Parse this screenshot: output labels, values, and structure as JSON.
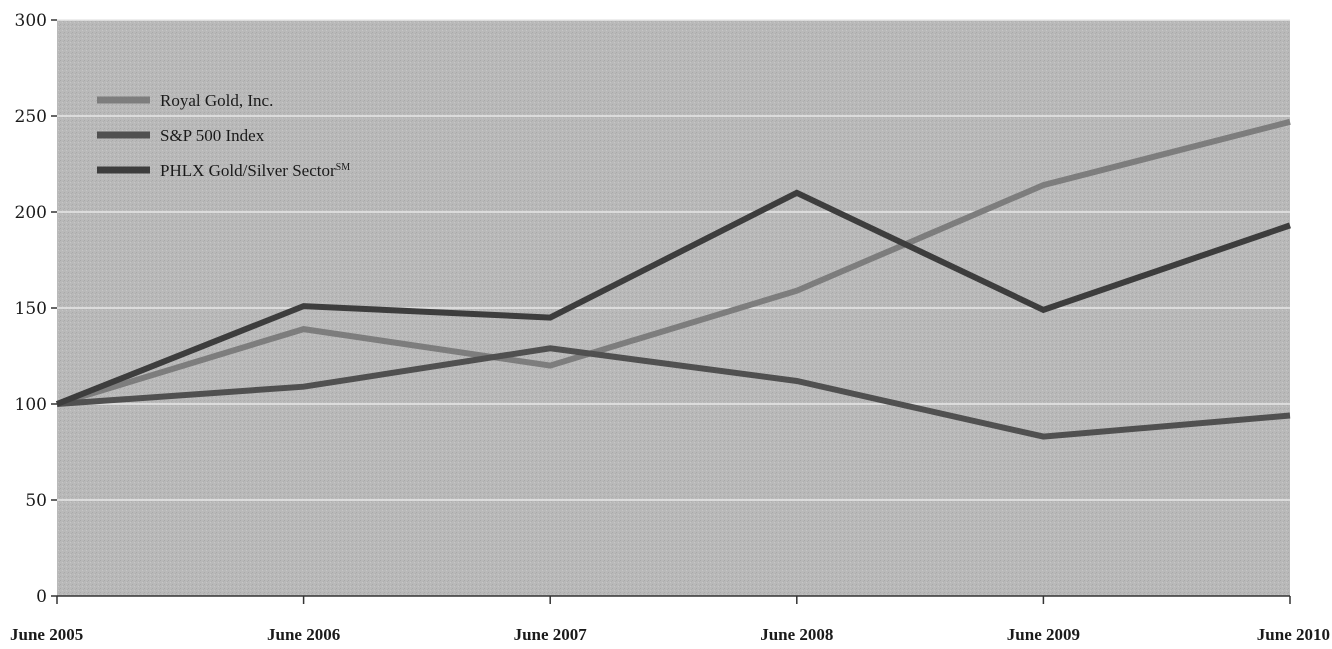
{
  "chart_data": {
    "type": "line",
    "categories": [
      "June 2005",
      "June 2006",
      "June 2007",
      "June 2008",
      "June 2009",
      "June 2010"
    ],
    "series": [
      {
        "name": "Royal Gold, Inc.",
        "values": [
          100,
          139,
          120,
          159,
          214,
          247
        ],
        "color": "#7d7d7d"
      },
      {
        "name": "S&P 500 Index",
        "values": [
          100,
          109,
          129,
          112,
          83,
          94
        ],
        "color": "#505050"
      },
      {
        "name": "PHLX Gold/Silver Sector",
        "superscript": "SM",
        "values": [
          100,
          151,
          145,
          210,
          149,
          193
        ],
        "color": "#3d3d3d"
      }
    ],
    "yticks": [
      0,
      50,
      100,
      150,
      200,
      250,
      300
    ],
    "ylim": [
      0,
      300
    ],
    "grid": true,
    "legend_position": "top-left",
    "plot_background": "#b9b9b9",
    "gridline_color": "#e8e8e8"
  }
}
